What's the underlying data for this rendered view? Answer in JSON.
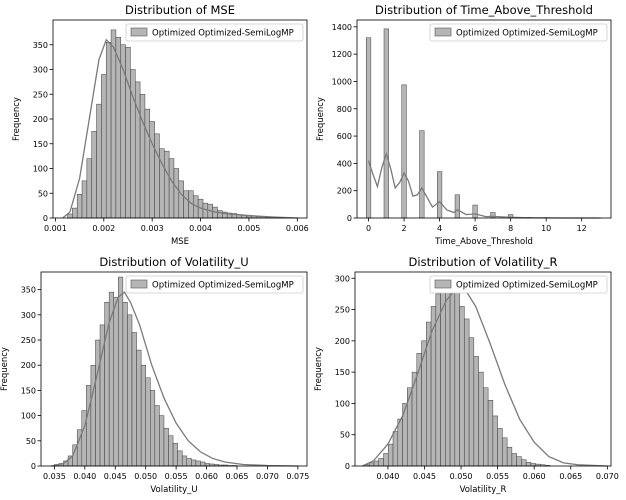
{
  "chart_data": [
    {
      "type": "bar",
      "title": "Distribution of MSE",
      "xlabel": "MSE",
      "ylabel": "Frequency",
      "xlim": [
        0.00095,
        0.0062
      ],
      "ylim": [
        0,
        400
      ],
      "xticks": [
        0.001,
        0.002,
        0.003,
        0.004,
        0.005,
        0.006
      ],
      "xtick_labels": [
        "0.001",
        "0.002",
        "0.003",
        "0.004",
        "0.005",
        "0.006"
      ],
      "yticks": [
        0,
        50,
        100,
        150,
        200,
        250,
        300,
        350
      ],
      "ytick_labels": [
        "0",
        "50",
        "100",
        "150",
        "200",
        "250",
        "300",
        "350"
      ],
      "bin_start": 0.00125,
      "bin_width": 0.0001,
      "values": [
        8,
        20,
        48,
        75,
        120,
        175,
        230,
        290,
        355,
        380,
        365,
        350,
        345,
        300,
        275,
        250,
        220,
        195,
        170,
        140,
        135,
        120,
        100,
        75,
        55,
        55,
        45,
        38,
        30,
        28,
        22,
        15,
        12,
        10,
        9,
        7,
        5,
        4,
        4,
        3,
        3,
        2,
        2,
        1,
        1,
        0,
        0
      ],
      "kde": [
        [
          0.00115,
          0
        ],
        [
          0.0013,
          12
        ],
        [
          0.0015,
          80
        ],
        [
          0.0017,
          200
        ],
        [
          0.0019,
          320
        ],
        [
          0.00205,
          360
        ],
        [
          0.0022,
          345
        ],
        [
          0.0024,
          300
        ],
        [
          0.0026,
          245
        ],
        [
          0.0028,
          195
        ],
        [
          0.003,
          150
        ],
        [
          0.0032,
          110
        ],
        [
          0.0034,
          75
        ],
        [
          0.0036,
          48
        ],
        [
          0.0038,
          30
        ],
        [
          0.004,
          20
        ],
        [
          0.0043,
          12
        ],
        [
          0.0046,
          8
        ],
        [
          0.005,
          5
        ],
        [
          0.0055,
          2
        ],
        [
          0.006,
          0
        ]
      ],
      "legend": "Optimized Optimized-SemiLogMP",
      "legend_position": "top-right",
      "color": "#b5b5b5",
      "kde_color": "#7a7a7a"
    },
    {
      "type": "bar",
      "title": "Distribution of Time_Above_Threshold",
      "xlabel": "Time_Above_Threshold",
      "ylabel": "Frequency",
      "xlim": [
        -0.65,
        13.65
      ],
      "ylim": [
        0,
        1450
      ],
      "xticks": [
        0,
        2,
        4,
        6,
        8,
        10,
        12
      ],
      "xtick_labels": [
        "0",
        "2",
        "4",
        "6",
        "8",
        "10",
        "12"
      ],
      "yticks": [
        0,
        200,
        400,
        600,
        800,
        1000,
        1200,
        1400
      ],
      "ytick_labels": [
        "0",
        "200",
        "400",
        "600",
        "800",
        "1000",
        "1200",
        "1400"
      ],
      "bar_width": 0.26,
      "categories": [
        0,
        1,
        2,
        3,
        4,
        5,
        6,
        7,
        8,
        9,
        10,
        11,
        12,
        13
      ],
      "values": [
        1320,
        1385,
        975,
        640,
        340,
        170,
        95,
        40,
        25,
        5,
        3,
        2,
        1,
        1
      ],
      "kde": [
        [
          0,
          420
        ],
        [
          0.25,
          320
        ],
        [
          0.5,
          230
        ],
        [
          0.75,
          370
        ],
        [
          1,
          470
        ],
        [
          1.25,
          360
        ],
        [
          1.5,
          220
        ],
        [
          1.75,
          260
        ],
        [
          2,
          330
        ],
        [
          2.25,
          270
        ],
        [
          2.5,
          160
        ],
        [
          2.75,
          170
        ],
        [
          3,
          220
        ],
        [
          3.3,
          150
        ],
        [
          3.6,
          80
        ],
        [
          4,
          120
        ],
        [
          4.4,
          60
        ],
        [
          4.8,
          40
        ],
        [
          5,
          60
        ],
        [
          5.5,
          25
        ],
        [
          6,
          30
        ],
        [
          6.6,
          10
        ],
        [
          7,
          12
        ],
        [
          8,
          5
        ],
        [
          9,
          2
        ],
        [
          10,
          1
        ],
        [
          11,
          0
        ],
        [
          12,
          0
        ],
        [
          13,
          0
        ]
      ],
      "legend": "Optimized Optimized-SemiLogMP",
      "legend_position": "top-right",
      "color": "#b5b5b5",
      "kde_color": "#7a7a7a"
    },
    {
      "type": "bar",
      "title": "Distribution of Volatility_U",
      "xlabel": "Volatility_U",
      "ylabel": "Frequency",
      "xlim": [
        0.0328,
        0.0765
      ],
      "ylim": [
        0,
        385
      ],
      "xticks": [
        0.035,
        0.04,
        0.045,
        0.05,
        0.055,
        0.06,
        0.065,
        0.07,
        0.075
      ],
      "xtick_labels": [
        "0.035",
        "0.040",
        "0.045",
        "0.050",
        "0.055",
        "0.060",
        "0.065",
        "0.070",
        "0.075"
      ],
      "yticks": [
        0,
        50,
        100,
        150,
        200,
        250,
        300,
        350
      ],
      "ytick_labels": [
        "0",
        "50",
        "100",
        "150",
        "200",
        "250",
        "300",
        "350"
      ],
      "bin_start": 0.035,
      "bin_width": 0.00075,
      "values": [
        3,
        5,
        10,
        20,
        42,
        72,
        110,
        160,
        200,
        250,
        280,
        325,
        345,
        335,
        375,
        325,
        300,
        265,
        230,
        200,
        175,
        150,
        120,
        100,
        75,
        60,
        45,
        30,
        20,
        15,
        12,
        10,
        8,
        5,
        4,
        3,
        2,
        2,
        1,
        1
      ],
      "kde": [
        [
          0.0345,
          0
        ],
        [
          0.0365,
          5
        ],
        [
          0.038,
          20
        ],
        [
          0.04,
          80
        ],
        [
          0.042,
          180
        ],
        [
          0.044,
          285
        ],
        [
          0.0455,
          335
        ],
        [
          0.0465,
          345
        ],
        [
          0.0475,
          325
        ],
        [
          0.049,
          280
        ],
        [
          0.051,
          200
        ],
        [
          0.053,
          135
        ],
        [
          0.055,
          85
        ],
        [
          0.057,
          50
        ],
        [
          0.059,
          28
        ],
        [
          0.061,
          15
        ],
        [
          0.063,
          8
        ],
        [
          0.066,
          3
        ],
        [
          0.07,
          1
        ],
        [
          0.075,
          0
        ]
      ],
      "legend": "Optimized Optimized-SemiLogMP",
      "legend_position": "top-right",
      "color": "#b5b5b5",
      "kde_color": "#7a7a7a"
    },
    {
      "type": "bar",
      "title": "Distribution of Volatility_R",
      "xlabel": "Volatility_R",
      "ylabel": "Frequency",
      "xlim": [
        0.0355,
        0.0705
      ],
      "ylim": [
        0,
        310
      ],
      "xticks": [
        0.04,
        0.045,
        0.05,
        0.055,
        0.06,
        0.065,
        0.07
      ],
      "xtick_labels": [
        "0.040",
        "0.045",
        "0.050",
        "0.055",
        "0.060",
        "0.065",
        "0.070"
      ],
      "yticks": [
        0,
        50,
        100,
        150,
        200,
        250,
        300
      ],
      "ytick_labels": [
        "0",
        "50",
        "100",
        "150",
        "200",
        "250",
        "300"
      ],
      "bin_start": 0.0368,
      "bin_width": 0.00065,
      "values": [
        2,
        5,
        8,
        12,
        20,
        35,
        55,
        75,
        100,
        125,
        150,
        180,
        200,
        230,
        255,
        275,
        285,
        295,
        290,
        280,
        255,
        235,
        205,
        175,
        150,
        125,
        105,
        80,
        60,
        45,
        30,
        20,
        15,
        10,
        6,
        4,
        3,
        2,
        1
      ],
      "kde": [
        [
          0.0365,
          0
        ],
        [
          0.038,
          8
        ],
        [
          0.04,
          35
        ],
        [
          0.042,
          80
        ],
        [
          0.044,
          145
        ],
        [
          0.046,
          215
        ],
        [
          0.048,
          265
        ],
        [
          0.0495,
          285
        ],
        [
          0.0505,
          283
        ],
        [
          0.052,
          255
        ],
        [
          0.054,
          195
        ],
        [
          0.056,
          130
        ],
        [
          0.058,
          75
        ],
        [
          0.06,
          38
        ],
        [
          0.062,
          15
        ],
        [
          0.064,
          5
        ],
        [
          0.066,
          2
        ],
        [
          0.07,
          0
        ]
      ],
      "legend": "Optimized Optimized-SemiLogMP",
      "legend_position": "top-right",
      "color": "#b5b5b5",
      "kde_color": "#7a7a7a"
    }
  ]
}
